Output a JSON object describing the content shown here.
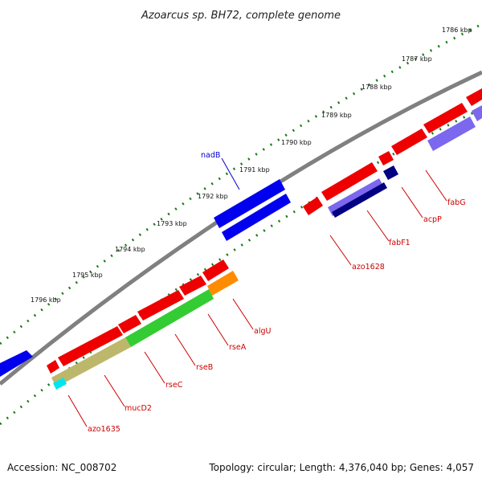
{
  "title": "Azoarcus sp. BH72, complete genome",
  "footer": {
    "accession": "Accession: NC_008702",
    "summary": "Topology: circular; Length: 4,376,040 bp; Genes: 4,057"
  },
  "ticks_outer": [
    "1786 kbp",
    "1787 kbp",
    "1788 kbp",
    "1789 kbp",
    "1790 kbp",
    "1791 kbp",
    "1792 kbp",
    "1793 kbp",
    "1794 kbp",
    "1795 kbp",
    "1796 kbp"
  ],
  "gene_labels": [
    "nadB",
    "fabG",
    "acpP",
    "fabF1",
    "azo1628",
    "algU",
    "rseA",
    "rseB",
    "rseC",
    "mucD2",
    "azo1635"
  ],
  "colors": {
    "backbone": "#808080",
    "tick": "#1a7a1a",
    "forward_cds": "#ee0000",
    "blue_cds": "#0000ee",
    "purple_cds": "#7b68ee",
    "navy_cds": "#000080",
    "green_feature": "#33cc33",
    "khaki_feature": "#bdb76b",
    "orange_feature": "#ff8c00",
    "cyan_feature": "#00e5ee",
    "red_label": "#cc0000",
    "blue_label": "#0000cc"
  }
}
